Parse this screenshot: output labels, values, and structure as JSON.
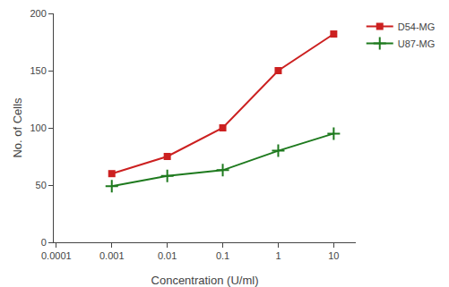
{
  "chart_data": {
    "type": "line",
    "x": [
      0.001,
      0.01,
      0.1,
      1,
      10
    ],
    "series": [
      {
        "name": "D54-MG",
        "color": "#cc2020",
        "marker": "square",
        "values": [
          60,
          75,
          100,
          150,
          182
        ]
      },
      {
        "name": "U87-MG",
        "color": "#1e7a1e",
        "marker": "plus",
        "values": [
          49,
          58,
          63,
          80,
          95
        ]
      }
    ],
    "xlabel": "Concentration (U/ml)",
    "ylabel": "No. of Cells",
    "log": "x",
    "xlim": [
      9e-05,
      25
    ],
    "xticks": [
      0.0001,
      0.001,
      0.01,
      0.1,
      1,
      10
    ],
    "ylim": [
      0,
      200
    ],
    "yticks": [
      0,
      50,
      100,
      150,
      200
    ],
    "grid": false,
    "legend": "right"
  }
}
